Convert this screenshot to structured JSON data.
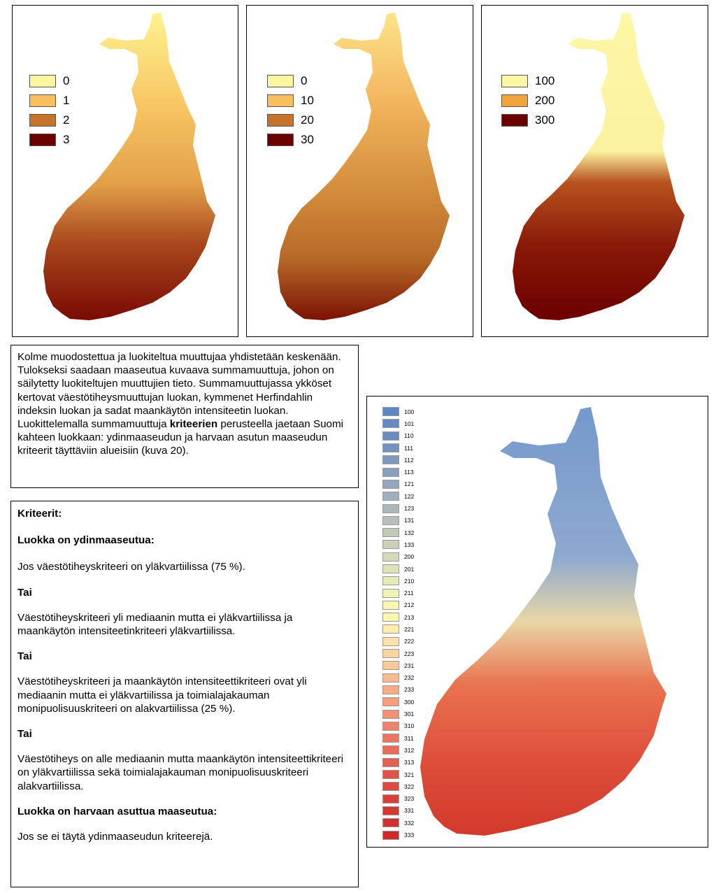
{
  "map_panels": [
    {
      "legend": [
        {
          "label": "0",
          "color": "#fdf59f"
        },
        {
          "label": "1",
          "color": "#f7c05d"
        },
        {
          "label": "2",
          "color": "#c7732a"
        },
        {
          "label": "3",
          "color": "#6b0000"
        }
      ]
    },
    {
      "legend": [
        {
          "label": "0",
          "color": "#fdf59f"
        },
        {
          "label": "10",
          "color": "#f7c05d"
        },
        {
          "label": "20",
          "color": "#c7732a"
        },
        {
          "label": "30",
          "color": "#6b0000"
        }
      ]
    },
    {
      "legend": [
        {
          "label": "100",
          "color": "#fcf8a6"
        },
        {
          "label": "200",
          "color": "#f0a43a"
        },
        {
          "label": "300",
          "color": "#6b0000"
        }
      ]
    }
  ],
  "description": {
    "text_before": "Kolme muodostettua ja luokiteltua muuttujaa yhdistetään keskenään. Tulokseksi saadaan maaseutua kuvaava summamuuttuja, johon on säilytetty luokiteltujen muuttujien tieto. Summamuuttujassa ykköset kertovat väestötiheysmuuttujan luokan, kymmenet Herfindahlin indeksin luokan ja sadat maankäytön intensiteetin luokan. Luokittelemalla summamuuttuja ",
    "bold_word": "kriteerien",
    "text_after": " perusteella jaetaan Suomi kahteen luokkaan: ydinmaaseudun ja harvaan asutun maaseudun kriteerit täyttäviin alueisiin (kuva 20)."
  },
  "criteria": {
    "title": "Kriteerit:",
    "core_heading": "Luokka on ydinmaaseutua:",
    "rule1": "Jos väestötiheyskriteeri on yläkvartiilissa (75 %).",
    "or1": "Tai",
    "rule2": "Väestötiheyskriteeri yli mediaanin mutta ei yläkvartiilissa ja maankäytön intensiteetinkriteeri yläkvartiilissa.",
    "or2": "Tai",
    "rule3": "Väestötiheyskriteeri ja maankäytön intensiteettikriteeri ovat yli mediaanin mutta ei yläkvartiilissa ja toimialajakauman monipuolisuuskriteeri on alakvartiilissa (25 %).",
    "or3": "Tai",
    "rule4": "Väestötiheys on alle mediaanin mutta maankäytön intensiteettikriteeri on yläkvartiilissa sekä toimialajakauman monipuolisuuskriteeri alakvartiilissa.",
    "sparse_heading": "Luokka on harvaan asuttua maaseutua:",
    "sparse_rule": "Jos se ei täytä ydinmaaseudun kriteerejä."
  },
  "combined_map": {
    "legend": [
      {
        "label": "100",
        "color": "#5f86c4"
      },
      {
        "label": "101",
        "color": "#6589c2"
      },
      {
        "label": "110",
        "color": "#6b8cc0"
      },
      {
        "label": "111",
        "color": "#7592bf"
      },
      {
        "label": "112",
        "color": "#7f98bd"
      },
      {
        "label": "113",
        "color": "#8a9fbd"
      },
      {
        "label": "121",
        "color": "#95a7bc"
      },
      {
        "label": "122",
        "color": "#a0afbc"
      },
      {
        "label": "123",
        "color": "#abb7bb"
      },
      {
        "label": "131",
        "color": "#b6bfba"
      },
      {
        "label": "132",
        "color": "#c0c8ba"
      },
      {
        "label": "133",
        "color": "#cad0b9"
      },
      {
        "label": "200",
        "color": "#d4d9b9"
      },
      {
        "label": "201",
        "color": "#dde2b8"
      },
      {
        "label": "210",
        "color": "#e6eab6"
      },
      {
        "label": "211",
        "color": "#eef2b4"
      },
      {
        "label": "212",
        "color": "#f6f8b2"
      },
      {
        "label": "213",
        "color": "#fcf7af"
      },
      {
        "label": "221",
        "color": "#fdedab"
      },
      {
        "label": "222",
        "color": "#fde2a5"
      },
      {
        "label": "223",
        "color": "#fcd59e"
      },
      {
        "label": "231",
        "color": "#fbc897"
      },
      {
        "label": "232",
        "color": "#f9ba8f"
      },
      {
        "label": "233",
        "color": "#f7ac86"
      },
      {
        "label": "300",
        "color": "#f59e7d"
      },
      {
        "label": "301",
        "color": "#f29074"
      },
      {
        "label": "310",
        "color": "#ef836a"
      },
      {
        "label": "311",
        "color": "#ec7661"
      },
      {
        "label": "312",
        "color": "#e86a58"
      },
      {
        "label": "313",
        "color": "#e55e4f"
      },
      {
        "label": "321",
        "color": "#e15347"
      },
      {
        "label": "322",
        "color": "#de4940"
      },
      {
        "label": "323",
        "color": "#da3f39"
      },
      {
        "label": "331",
        "color": "#d63733"
      },
      {
        "label": "332",
        "color": "#d2302e"
      },
      {
        "label": "333",
        "color": "#ce2a2a"
      }
    ]
  }
}
